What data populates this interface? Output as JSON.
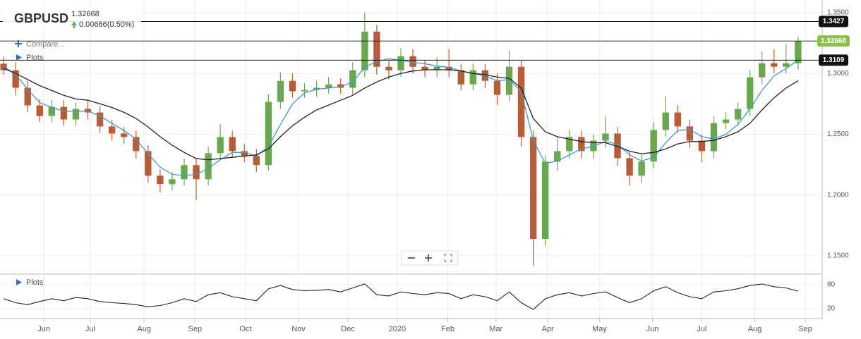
{
  "chart_data": {
    "type": "candlestick",
    "symbol": "GBPUSD",
    "change": "0.00666(0.50%)",
    "compare": "Compare...",
    "plots": "Plots",
    "last_price": 1.32668,
    "levels": [
      1.3427,
      1.3109
    ],
    "xlim": [
      -0.3,
      68
    ],
    "xticks": [
      {
        "value": 3.34,
        "label": "Jun"
      },
      {
        "value": 7.2,
        "label": "Jul"
      },
      {
        "value": 11.67,
        "label": "Aug"
      },
      {
        "value": 15.9,
        "label": "Sep"
      },
      {
        "value": 20.1,
        "label": "Oct"
      },
      {
        "value": 24.5,
        "label": "Nov"
      },
      {
        "value": 28.6,
        "label": "Dec"
      },
      {
        "value": 32.7,
        "label": "2020"
      },
      {
        "value": 36.9,
        "label": "Feb"
      },
      {
        "value": 40.9,
        "label": "Mar"
      },
      {
        "value": 45.2,
        "label": "Apr"
      },
      {
        "value": 49.5,
        "label": "May"
      },
      {
        "value": 53.9,
        "label": "Jun"
      },
      {
        "value": 58,
        "label": "Jul"
      },
      {
        "value": 62.4,
        "label": "Aug"
      },
      {
        "value": 66.6,
        "label": "Sep"
      }
    ],
    "ylim": [
      1.1355,
      1.3575
    ],
    "yticks": [
      {
        "value": 1.35,
        "label": "1.3500"
      },
      {
        "value": 1.3,
        "label": "1.3000"
      },
      {
        "value": 1.25,
        "label": "1.2500"
      },
      {
        "value": 1.2,
        "label": "1.2000"
      },
      {
        "value": 1.15,
        "label": "1.1500"
      }
    ],
    "grid": true,
    "up_color": "#6aa84f",
    "down_color": "#b85c38",
    "ohlc": {
      "open": [
        1.308,
        1.3026,
        1.2882,
        1.2737,
        1.265,
        1.2725,
        1.2621,
        1.2708,
        1.2679,
        1.2564,
        1.2506,
        1.2477,
        1.2361,
        1.2159,
        1.209,
        1.213,
        1.2246,
        1.213,
        1.2344,
        1.2477,
        1.2361,
        1.2321,
        1.2246,
        1.2766,
        1.2939,
        1.2853,
        1.2864,
        1.2882,
        1.291,
        1.2882,
        1.3026,
        1.3344,
        1.3055,
        1.3026,
        1.3142,
        1.3055,
        1.3026,
        1.3055,
        1.3026,
        1.291,
        1.3026,
        1.2939,
        1.2824,
        1.3055,
        1.2477,
        1.1639,
        1.2275,
        1.2361,
        1.2477,
        1.2361,
        1.2448,
        1.2506,
        1.2303,
        1.2159,
        1.2275,
        1.2535,
        1.2679,
        1.2564,
        1.2448,
        1.2361,
        1.2592,
        1.2621,
        1.2708,
        1.2968,
        1.3084,
        1.3055,
        1.3084
      ],
      "high": [
        1.314,
        1.309,
        1.294,
        1.279,
        1.278,
        1.278,
        1.276,
        1.277,
        1.273,
        1.262,
        1.256,
        1.253,
        1.241,
        1.221,
        1.219,
        1.23,
        1.23,
        1.24,
        1.258,
        1.253,
        1.242,
        1.238,
        1.283,
        1.301,
        1.3,
        1.292,
        1.294,
        1.297,
        1.296,
        1.309,
        1.35,
        1.34,
        1.311,
        1.321,
        1.32,
        1.311,
        1.313,
        1.32,
        1.308,
        1.308,
        1.308,
        1.3,
        1.319,
        1.311,
        1.253,
        1.233,
        1.248,
        1.254,
        1.253,
        1.25,
        1.265,
        1.256,
        1.236,
        1.233,
        1.26,
        1.281,
        1.274,
        1.262,
        1.25,
        1.265,
        1.268,
        1.276,
        1.303,
        1.318,
        1.32,
        1.324,
        1.33
      ],
      "low": [
        1.299,
        1.282,
        1.268,
        1.26,
        1.26,
        1.257,
        1.257,
        1.262,
        1.251,
        1.245,
        1.242,
        1.23,
        1.21,
        1.202,
        1.204,
        1.208,
        1.196,
        1.208,
        1.229,
        1.231,
        1.227,
        1.219,
        1.22,
        1.271,
        1.28,
        1.28,
        1.281,
        1.283,
        1.283,
        1.283,
        1.297,
        1.299,
        1.295,
        1.297,
        1.3,
        1.297,
        1.297,
        1.297,
        1.286,
        1.286,
        1.288,
        1.274,
        1.277,
        1.24,
        1.142,
        1.158,
        1.22,
        1.23,
        1.23,
        1.23,
        1.239,
        1.224,
        1.208,
        1.21,
        1.222,
        1.248,
        1.251,
        1.239,
        1.227,
        1.23,
        1.254,
        1.257,
        1.265,
        1.291,
        1.3,
        1.3,
        1.303
      ],
      "close": [
        1.3026,
        1.2882,
        1.2737,
        1.265,
        1.2725,
        1.2621,
        1.2708,
        1.2679,
        1.2564,
        1.2506,
        1.2477,
        1.2361,
        1.2159,
        1.209,
        1.213,
        1.2246,
        1.213,
        1.2344,
        1.2477,
        1.2361,
        1.2321,
        1.2246,
        1.2766,
        1.2939,
        1.2853,
        1.2864,
        1.2882,
        1.291,
        1.2882,
        1.3026,
        1.3344,
        1.3055,
        1.3026,
        1.3142,
        1.3055,
        1.3026,
        1.3055,
        1.3026,
        1.291,
        1.3026,
        1.2939,
        1.2824,
        1.3055,
        1.2477,
        1.1639,
        1.2275,
        1.2361,
        1.2477,
        1.2361,
        1.2448,
        1.2506,
        1.2303,
        1.2159,
        1.2275,
        1.2535,
        1.2679,
        1.2564,
        1.2448,
        1.2361,
        1.2592,
        1.2621,
        1.2708,
        1.2968,
        1.3084,
        1.3055,
        1.3084,
        1.3267
      ]
    },
    "lines": [
      {
        "color": "#3a9cc4",
        "values": [
          1.306,
          1.299,
          1.287,
          1.276,
          1.272,
          1.269,
          1.269,
          1.269,
          1.265,
          1.259,
          1.253,
          1.246,
          1.234,
          1.223,
          1.217,
          1.216,
          1.217,
          1.222,
          1.229,
          1.235,
          1.235,
          1.232,
          1.24,
          1.258,
          1.275,
          1.284,
          1.287,
          1.288,
          1.289,
          1.293,
          1.305,
          1.31,
          1.312,
          1.311,
          1.309,
          1.308,
          1.306,
          1.305,
          1.302,
          1.3,
          1.298,
          1.294,
          1.295,
          1.285,
          1.245,
          1.226,
          1.228,
          1.233,
          1.238,
          1.24,
          1.244,
          1.242,
          1.233,
          1.228,
          1.231,
          1.243,
          1.253,
          1.254,
          1.248,
          1.246,
          1.25,
          1.258,
          1.271,
          1.286,
          1.298,
          1.304,
          1.311
        ]
      },
      {
        "color": "#222222",
        "values": [
          1.304,
          1.3,
          1.295,
          1.29,
          1.286,
          1.282,
          1.279,
          1.278,
          1.275,
          1.272,
          1.268,
          1.263,
          1.256,
          1.248,
          1.241,
          1.235,
          1.23,
          1.229,
          1.23,
          1.231,
          1.232,
          1.233,
          1.238,
          1.248,
          1.257,
          1.264,
          1.27,
          1.274,
          1.278,
          1.282,
          1.288,
          1.293,
          1.297,
          1.3,
          1.302,
          1.303,
          1.303,
          1.303,
          1.302,
          1.3,
          1.299,
          1.297,
          1.296,
          1.288,
          1.263,
          1.252,
          1.248,
          1.246,
          1.244,
          1.243,
          1.243,
          1.24,
          1.236,
          1.234,
          1.235,
          1.238,
          1.242,
          1.244,
          1.244,
          1.245,
          1.248,
          1.252,
          1.259,
          1.27,
          1.28,
          1.288,
          1.294
        ]
      }
    ],
    "oscillator": {
      "color": "#222222",
      "ylim": [
        -4.7,
        104.7
      ],
      "yticks": [
        80,
        20
      ],
      "values": [
        45,
        35,
        30,
        38,
        45,
        40,
        48,
        45,
        38,
        35,
        33,
        30,
        25,
        28,
        35,
        45,
        38,
        55,
        60,
        50,
        45,
        40,
        70,
        78,
        68,
        65,
        66,
        68,
        62,
        72,
        82,
        55,
        52,
        62,
        58,
        55,
        60,
        58,
        45,
        55,
        50,
        40,
        62,
        35,
        18,
        45,
        55,
        60,
        52,
        58,
        62,
        48,
        35,
        45,
        65,
        75,
        60,
        50,
        45,
        62,
        65,
        70,
        78,
        82,
        75,
        72,
        64
      ]
    }
  }
}
